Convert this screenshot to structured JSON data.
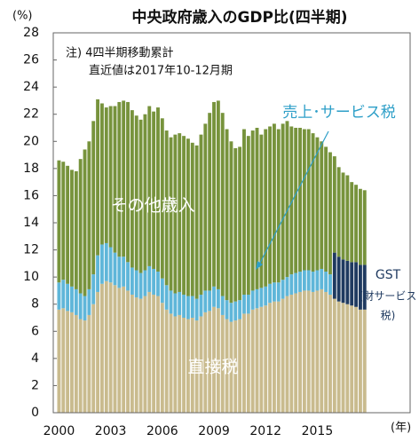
{
  "chart_data": {
    "type": "stacked-bar",
    "title": "中央政府歳入のGDP比(四半期)",
    "y_unit": "(%)",
    "x_unit": "(年)",
    "notes": [
      "注) 4四半期移動累計",
      "直近値は2017年10-12月期"
    ],
    "gst_note": [
      "(財サービス",
      "税)"
    ],
    "categories": [
      "2000",
      null,
      null,
      null,
      null,
      null,
      null,
      null,
      null,
      null,
      null,
      null,
      "2003",
      null,
      null,
      null,
      null,
      null,
      null,
      null,
      null,
      null,
      null,
      null,
      "2006",
      null,
      null,
      null,
      null,
      null,
      null,
      null,
      null,
      null,
      null,
      null,
      "2009",
      null,
      null,
      null,
      null,
      null,
      null,
      null,
      null,
      null,
      null,
      null,
      "2012",
      null,
      null,
      null,
      null,
      null,
      null,
      null,
      null,
      null,
      null,
      null,
      "2015",
      null,
      null,
      null,
      null,
      null,
      null,
      null,
      null,
      null,
      null,
      null
    ],
    "series": [
      {
        "name": "直接税",
        "color": "#c9bb8e",
        "values": [
          7.6,
          7.7,
          7.5,
          7.4,
          7.2,
          6.9,
          6.8,
          7.2,
          8.0,
          8.9,
          9.5,
          9.7,
          9.6,
          9.4,
          9.2,
          9.3,
          9.0,
          8.7,
          8.5,
          8.4,
          8.6,
          8.9,
          8.7,
          8.6,
          8.1,
          7.6,
          7.3,
          7.1,
          7.2,
          7.0,
          6.9,
          7.0,
          6.8,
          7.1,
          7.4,
          7.5,
          7.8,
          7.7,
          7.2,
          6.9,
          6.7,
          6.8,
          6.9,
          7.3,
          7.3,
          7.6,
          7.7,
          7.8,
          7.9,
          8.1,
          8.2,
          8.2,
          8.4,
          8.6,
          8.7,
          8.8,
          8.9,
          9.0,
          9.0,
          8.9,
          9.0,
          9.1,
          8.9,
          8.7,
          8.4,
          8.2,
          8.1,
          8.0,
          7.9,
          7.8,
          7.6,
          7.6
        ]
      },
      {
        "name": "売上･サービス税",
        "color": "#5fb6d9",
        "values": [
          2.0,
          2.1,
          2.0,
          1.9,
          1.9,
          1.9,
          1.8,
          1.9,
          2.2,
          2.7,
          2.9,
          2.8,
          2.6,
          2.4,
          2.3,
          2.2,
          2.1,
          2.0,
          2.0,
          1.9,
          1.9,
          1.9,
          1.9,
          1.8,
          1.8,
          1.8,
          1.7,
          1.7,
          1.7,
          1.7,
          1.7,
          1.6,
          1.6,
          1.6,
          1.6,
          1.5,
          1.5,
          1.4,
          1.4,
          1.4,
          1.4,
          1.4,
          1.4,
          1.4,
          1.4,
          1.4,
          1.4,
          1.4,
          1.4,
          1.4,
          1.4,
          1.4,
          1.4,
          1.4,
          1.5,
          1.5,
          1.5,
          1.5,
          1.5,
          1.5,
          1.5,
          1.5,
          1.5,
          1.5,
          null,
          null,
          null,
          null,
          null,
          null,
          null,
          null
        ]
      },
      {
        "name": "GST",
        "color": "#1f3a60",
        "values": [
          null,
          null,
          null,
          null,
          null,
          null,
          null,
          null,
          null,
          null,
          null,
          null,
          null,
          null,
          null,
          null,
          null,
          null,
          null,
          null,
          null,
          null,
          null,
          null,
          null,
          null,
          null,
          null,
          null,
          null,
          null,
          null,
          null,
          null,
          null,
          null,
          null,
          null,
          null,
          null,
          null,
          null,
          null,
          null,
          null,
          null,
          null,
          null,
          null,
          null,
          null,
          null,
          null,
          null,
          null,
          null,
          null,
          null,
          null,
          null,
          null,
          null,
          null,
          null,
          3.4,
          3.3,
          3.2,
          3.2,
          3.2,
          3.3,
          3.3,
          3.3
        ]
      },
      {
        "name": "その他歳入",
        "color": "#77933c",
        "values": [
          9.0,
          8.7,
          8.7,
          8.6,
          8.7,
          9.9,
          10.8,
          10.9,
          11.3,
          11.5,
          10.4,
          10.0,
          10.4,
          10.8,
          11.4,
          11.5,
          11.8,
          11.6,
          11.4,
          11.3,
          11.5,
          11.8,
          11.6,
          12.1,
          11.8,
          11.4,
          11.3,
          11.7,
          11.7,
          11.7,
          11.6,
          11.3,
          11.3,
          11.8,
          12.3,
          13.1,
          13.6,
          13.9,
          13.5,
          12.6,
          11.9,
          11.3,
          11.3,
          12.2,
          11.7,
          11.8,
          11.9,
          11.3,
          11.6,
          11.6,
          11.7,
          11.3,
          11.5,
          11.5,
          10.9,
          10.7,
          10.6,
          10.4,
          10.4,
          10.2,
          9.8,
          9.4,
          9.2,
          9.0,
          7.1,
          6.6,
          6.4,
          6.3,
          5.9,
          5.7,
          5.6,
          5.5
        ]
      }
    ],
    "ylim": [
      0,
      28
    ],
    "yticks": [
      0,
      2,
      4,
      6,
      8,
      10,
      12,
      14,
      16,
      18,
      20,
      22,
      24,
      26,
      28
    ]
  }
}
